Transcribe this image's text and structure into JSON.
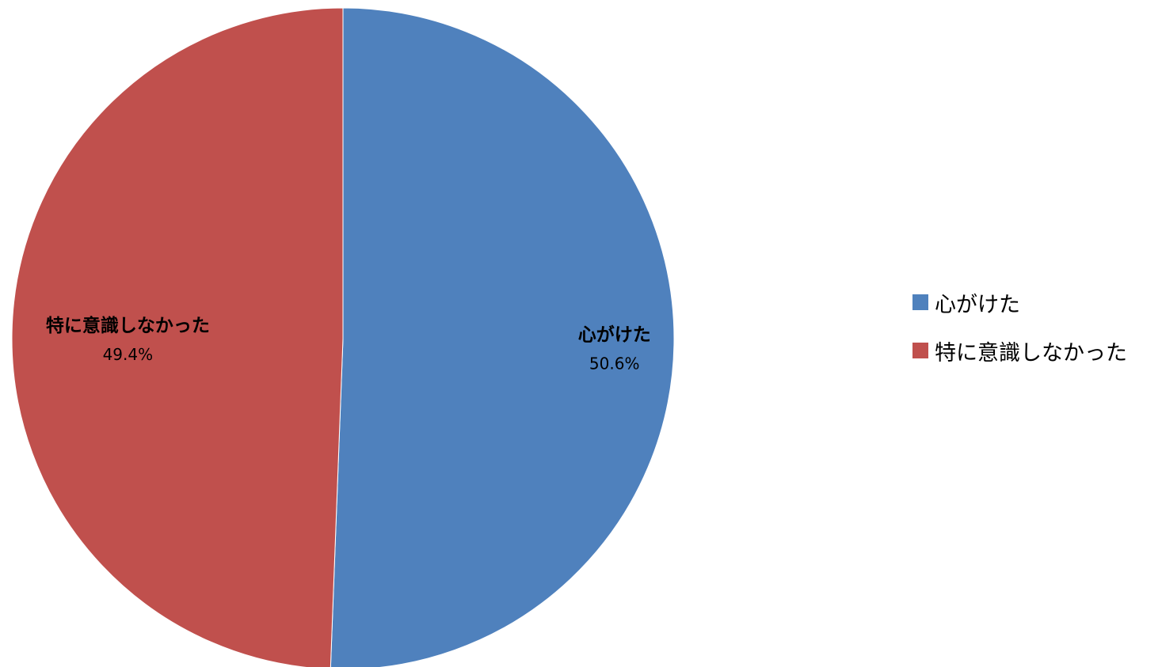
{
  "chart_data": {
    "type": "pie",
    "slices": [
      {
        "label": "心がけた",
        "value": 50.6,
        "display": "50.6%",
        "color": "#4f81bd"
      },
      {
        "label": "特に意識しなかった",
        "value": 49.4,
        "display": "49.4%",
        "color": "#c0504d"
      }
    ],
    "start_angle_deg": 0,
    "direction": "clockwise",
    "data_labels": "category name and percentage",
    "legend": {
      "position": "right",
      "entries": [
        "心がけた",
        "特に意識しなかった"
      ]
    }
  }
}
